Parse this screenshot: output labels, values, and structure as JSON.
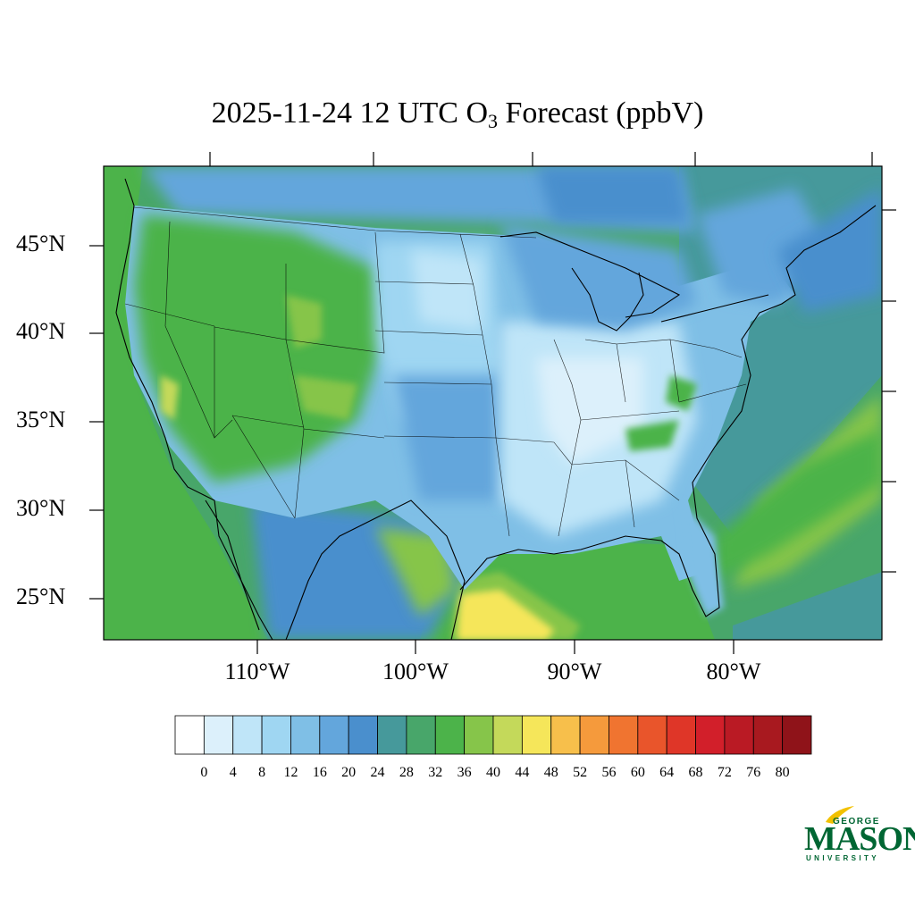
{
  "title": {
    "main": "2025-11-24 12 UTC O",
    "subscript": "3",
    "suffix": " Forecast (ppbV)"
  },
  "map": {
    "region": "Continental United States",
    "projection": "lat-lon",
    "lat_labels": [
      "45°N",
      "40°N",
      "35°N",
      "30°N",
      "25°N"
    ],
    "lat_values": [
      45,
      40,
      35,
      30,
      25
    ],
    "lon_labels": [
      "110°W",
      "100°W",
      "90°W",
      "80°W"
    ],
    "lon_values": [
      -110,
      -100,
      -90,
      -80
    ],
    "lat_range": [
      22.5,
      49.5
    ],
    "lon_range": [
      -119,
      -69.8
    ]
  },
  "colorbar": {
    "ticks": [
      "0",
      "4",
      "8",
      "12",
      "16",
      "20",
      "24",
      "28",
      "32",
      "36",
      "40",
      "44",
      "48",
      "52",
      "56",
      "60",
      "64",
      "68",
      "72",
      "76",
      "80"
    ],
    "colors": [
      "#ffffff",
      "#dcf0fb",
      "#bfe5f8",
      "#9fd6f2",
      "#7fbfe6",
      "#63a6dc",
      "#4a8fcd",
      "#46999b",
      "#48a66a",
      "#4cb34a",
      "#86c54a",
      "#c4d95a",
      "#f5e65a",
      "#f7bf4b",
      "#f59a3c",
      "#f07430",
      "#e9552b",
      "#df3628",
      "#d21f2a",
      "#ba1a24",
      "#a8191f",
      "#8f1319"
    ]
  },
  "logo": {
    "line1": "GEORGE",
    "line2": "MASON",
    "line3": "UNIVERSITY",
    "color": "#006633",
    "accent": "#f2c100"
  }
}
